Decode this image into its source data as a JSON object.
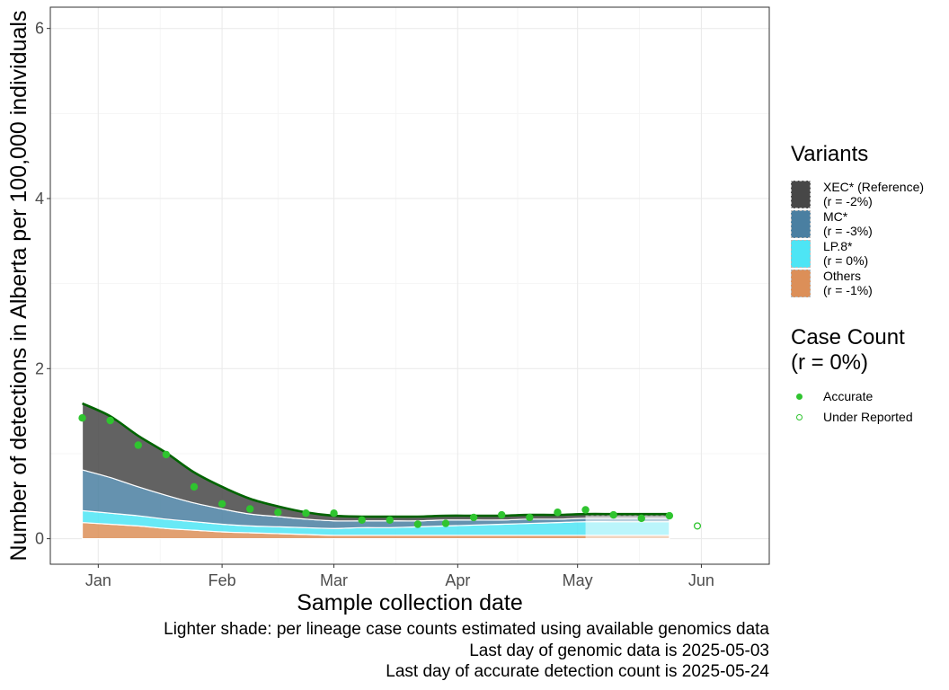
{
  "chart_data": {
    "type": "area",
    "xlabel": "Sample collection date",
    "ylabel": "Number of detections in Alberta per 100,000 individuals",
    "x_ticks": [
      {
        "label": "Jan",
        "date": "2025-01-01"
      },
      {
        "label": "Feb",
        "date": "2025-02-01"
      },
      {
        "label": "Mar",
        "date": "2025-03-01"
      },
      {
        "label": "Apr",
        "date": "2025-04-01"
      },
      {
        "label": "May",
        "date": "2025-05-01"
      },
      {
        "label": "Jun",
        "date": "2025-06-01"
      }
    ],
    "xlim": [
      "2024-12-20",
      "2025-06-18"
    ],
    "y_ticks": [
      0,
      2,
      4,
      6
    ],
    "ylim": [
      -0.3,
      6.25
    ],
    "grid": true,
    "genomic_data_end": "2025-05-03",
    "x": [
      "2024-12-28",
      "2025-01-04",
      "2025-01-11",
      "2025-01-18",
      "2025-01-25",
      "2025-02-01",
      "2025-02-08",
      "2025-02-15",
      "2025-02-22",
      "2025-03-01",
      "2025-03-08",
      "2025-03-15",
      "2025-03-22",
      "2025-03-29",
      "2025-04-05",
      "2025-04-12",
      "2025-04-19",
      "2025-04-26",
      "2025-05-03",
      "2025-05-10",
      "2025-05-17",
      "2025-05-24"
    ],
    "series": [
      {
        "name": "XEC* (Reference)",
        "legend_r": "(r = -2%)",
        "color": "#474747",
        "values": [
          0.78,
          0.72,
          0.6,
          0.5,
          0.36,
          0.26,
          0.18,
          0.12,
          0.08,
          0.06,
          0.05,
          0.05,
          0.05,
          0.05,
          0.05,
          0.05,
          0.05,
          0.05,
          0.05,
          0.05,
          0.05,
          0.05
        ]
      },
      {
        "name": "MC*",
        "legend_r": "(r = -3%)",
        "color": "#4a7fa1",
        "values": [
          0.48,
          0.42,
          0.34,
          0.28,
          0.22,
          0.18,
          0.14,
          0.12,
          0.1,
          0.09,
          0.08,
          0.08,
          0.07,
          0.07,
          0.06,
          0.05,
          0.05,
          0.04,
          0.04,
          0.04,
          0.04,
          0.04
        ]
      },
      {
        "name": "LP.8*",
        "legend_r": "(r = 0%)",
        "color": "#4de5f5",
        "values": [
          0.14,
          0.13,
          0.12,
          0.11,
          0.1,
          0.09,
          0.08,
          0.08,
          0.08,
          0.08,
          0.09,
          0.09,
          0.1,
          0.11,
          0.12,
          0.13,
          0.14,
          0.15,
          0.16,
          0.16,
          0.16,
          0.16
        ]
      },
      {
        "name": "Others",
        "legend_r": "(r = -1%)",
        "color": "#dc8f58",
        "values": [
          0.19,
          0.17,
          0.15,
          0.12,
          0.1,
          0.08,
          0.07,
          0.06,
          0.05,
          0.04,
          0.04,
          0.04,
          0.04,
          0.04,
          0.04,
          0.04,
          0.04,
          0.04,
          0.04,
          0.04,
          0.04,
          0.04
        ]
      }
    ],
    "total_curve": {
      "color": "#006400",
      "values": [
        1.59,
        1.44,
        1.21,
        1.01,
        0.78,
        0.61,
        0.47,
        0.38,
        0.31,
        0.27,
        0.26,
        0.26,
        0.26,
        0.27,
        0.27,
        0.27,
        0.28,
        0.28,
        0.29,
        0.29,
        0.29,
        0.29
      ]
    },
    "case_count": {
      "title_line1": "Case Count",
      "title_line2": "(r = 0%)",
      "color": "#2fc42f",
      "accurate_label": "Accurate",
      "under_label": "Under Reported",
      "accurate": [
        {
          "x": "2024-12-28",
          "y": 1.42
        },
        {
          "x": "2025-01-04",
          "y": 1.39
        },
        {
          "x": "2025-01-11",
          "y": 1.1
        },
        {
          "x": "2025-01-18",
          "y": 0.99
        },
        {
          "x": "2025-01-25",
          "y": 0.61
        },
        {
          "x": "2025-02-01",
          "y": 0.41
        },
        {
          "x": "2025-02-08",
          "y": 0.35
        },
        {
          "x": "2025-02-15",
          "y": 0.31
        },
        {
          "x": "2025-02-22",
          "y": 0.3
        },
        {
          "x": "2025-03-01",
          "y": 0.3
        },
        {
          "x": "2025-03-08",
          "y": 0.22
        },
        {
          "x": "2025-03-15",
          "y": 0.22
        },
        {
          "x": "2025-03-22",
          "y": 0.17
        },
        {
          "x": "2025-03-29",
          "y": 0.18
        },
        {
          "x": "2025-04-05",
          "y": 0.25
        },
        {
          "x": "2025-04-12",
          "y": 0.28
        },
        {
          "x": "2025-04-19",
          "y": 0.25
        },
        {
          "x": "2025-04-26",
          "y": 0.31
        },
        {
          "x": "2025-05-03",
          "y": 0.34
        },
        {
          "x": "2025-05-10",
          "y": 0.28
        },
        {
          "x": "2025-05-17",
          "y": 0.24
        },
        {
          "x": "2025-05-24",
          "y": 0.27
        }
      ],
      "under_reported": [
        {
          "x": "2025-05-31",
          "y": 0.15
        }
      ]
    }
  },
  "legend": {
    "variants_title": "Variants"
  },
  "captions": [
    "Lighter shade: per lineage case counts estimated using available genomics data",
    "Last day of genomic data is 2025-05-03",
    "Last day of accurate detection count is 2025-05-24"
  ]
}
